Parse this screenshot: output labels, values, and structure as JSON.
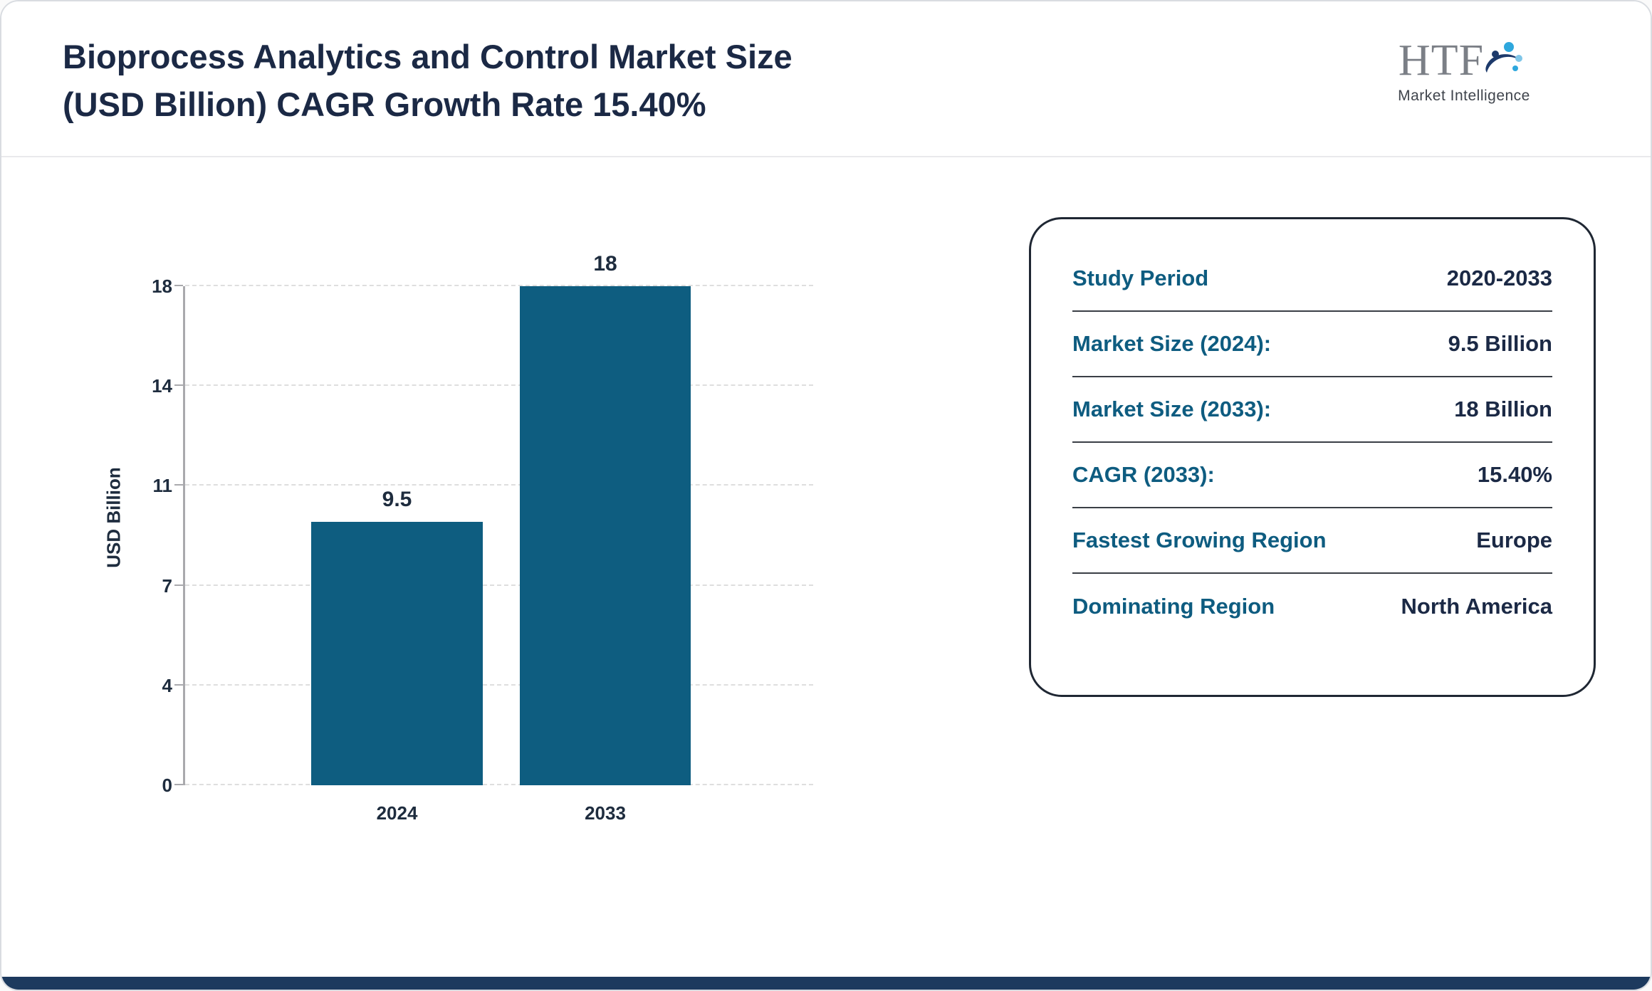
{
  "header": {
    "title_line1": "Bioprocess Analytics and Control Market Size",
    "title_line2": "(USD Billion) CAGR Growth Rate 15.40%",
    "logo": {
      "text": "HTF",
      "subtext": "Market Intelligence",
      "icon": "swoosh-people-icon"
    }
  },
  "chart_data": {
    "type": "bar",
    "title": "Bioprocess Analytics and Control Market Size (USD Billion) CAGR Growth Rate 15.40%",
    "categories": [
      "2024",
      "2033"
    ],
    "values": [
      9.5,
      18
    ],
    "value_labels": [
      "9.5",
      "18"
    ],
    "xlabel": "",
    "ylabel": "USD Billion",
    "yticks": [
      0,
      4,
      7,
      11,
      14,
      18
    ],
    "ylim": [
      0,
      18
    ],
    "grid": "dashed-horizontal",
    "legend": "none",
    "bar_color": "#0e5d80"
  },
  "info_panel": {
    "rows": [
      {
        "label": "Study Period",
        "value": "2020-2033"
      },
      {
        "label": "Market Size (2024):",
        "value": "9.5 Billion"
      },
      {
        "label": "Market Size (2033):",
        "value": "18 Billion"
      },
      {
        "label": "CAGR (2033):",
        "value": "15.40%"
      },
      {
        "label": "Fastest Growing Region",
        "value": "Europe"
      },
      {
        "label": "Dominating Region",
        "value": "North America"
      }
    ]
  },
  "colors": {
    "bar": "#0e5d80",
    "label_teal": "#0e5c80",
    "dark_navy": "#1b2945",
    "bottom_strip": "#1d3a5e"
  }
}
